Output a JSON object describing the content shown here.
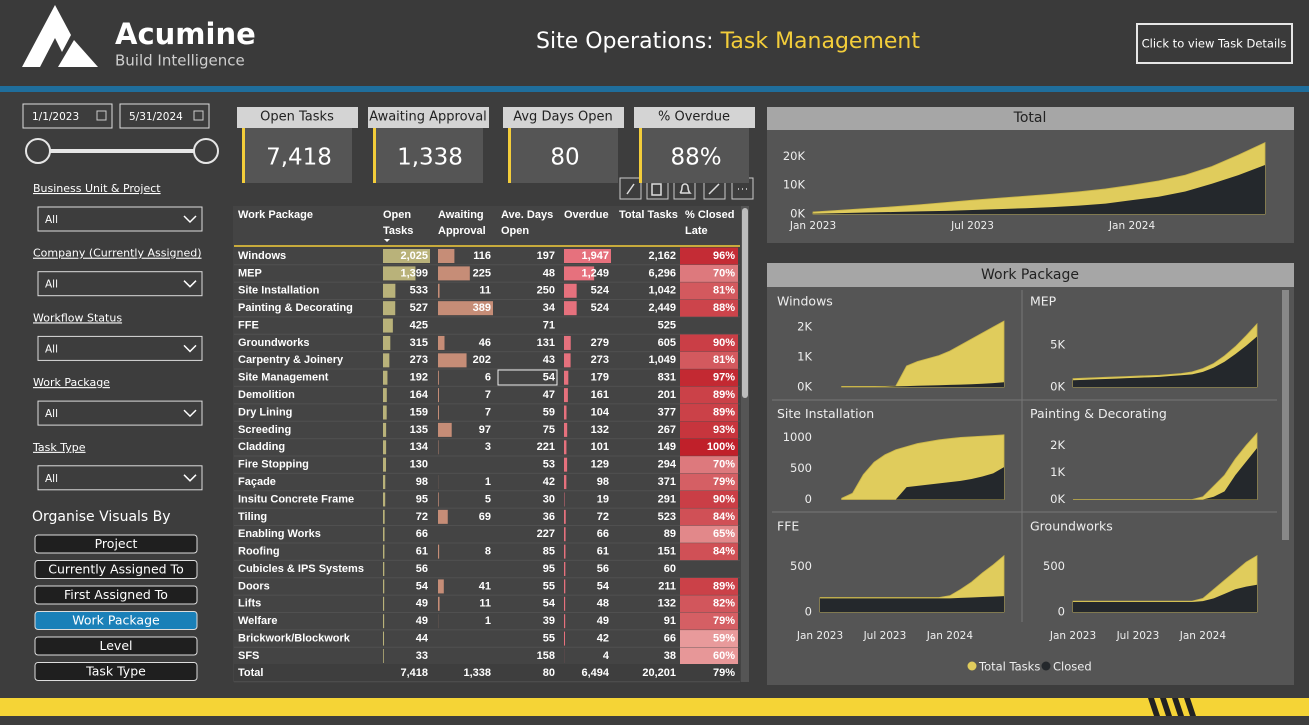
{
  "header": {
    "brand": "Acumine",
    "tagline": "Build Intelligence",
    "title_prefix": "Site Operations:",
    "title_highlight": "Task Management",
    "button": "Click to view Task Details"
  },
  "filters": {
    "date_start": "1/1/2023",
    "date_end": "5/31/2024",
    "slicers": [
      {
        "label": "Business Unit & Project",
        "value": "All"
      },
      {
        "label": "Company (Currently Assigned)",
        "value": "All"
      },
      {
        "label": "Workflow Status",
        "value": "All"
      },
      {
        "label": "Work Package",
        "value": "All"
      },
      {
        "label": "Task Type",
        "value": "All"
      }
    ]
  },
  "organise": {
    "title": "Organise Visuals By",
    "buttons": [
      {
        "label": "Project",
        "active": false
      },
      {
        "label": "Currently Assigned To",
        "active": false
      },
      {
        "label": "First Assigned To",
        "active": false
      },
      {
        "label": "Work Package",
        "active": true
      },
      {
        "label": "Level",
        "active": false
      },
      {
        "label": "Task Type",
        "active": false
      }
    ]
  },
  "kpis": [
    {
      "label": "Open Tasks",
      "value": "7,418"
    },
    {
      "label": "Awaiting Approval",
      "value": "1,338"
    },
    {
      "label": "Avg Days Open",
      "value": "80"
    },
    {
      "label": "% Overdue",
      "value": "88%"
    }
  ],
  "table": {
    "columns": [
      "Work Package",
      "Open Tasks",
      "Awaiting Approval",
      "Ave. Days Open",
      "Overdue",
      "Total Tasks",
      "% Closed Late"
    ],
    "rows": [
      [
        "Windows",
        "2,025",
        "116",
        "197",
        "1,947",
        "2,162",
        "96%"
      ],
      [
        "MEP",
        "1,399",
        "225",
        "48",
        "1,249",
        "6,296",
        "70%"
      ],
      [
        "Site Installation",
        "533",
        "11",
        "250",
        "524",
        "1,042",
        "81%"
      ],
      [
        "Painting & Decorating",
        "527",
        "389",
        "34",
        "524",
        "2,449",
        "88%"
      ],
      [
        "FFE",
        "425",
        null,
        "71",
        null,
        "525",
        null
      ],
      [
        "Groundworks",
        "315",
        "46",
        "131",
        "279",
        "605",
        "90%"
      ],
      [
        "Carpentry & Joinery",
        "273",
        "202",
        "43",
        "273",
        "1,049",
        "81%"
      ],
      [
        "Site Management",
        "192",
        "6",
        "54",
        "179",
        "831",
        "97%"
      ],
      [
        "Demolition",
        "164",
        "7",
        "47",
        "161",
        "201",
        "89%"
      ],
      [
        "Dry Lining",
        "159",
        "7",
        "59",
        "104",
        "377",
        "89%"
      ],
      [
        "Screeding",
        "135",
        "97",
        "75",
        "132",
        "267",
        "93%"
      ],
      [
        "Cladding",
        "134",
        "3",
        "221",
        "101",
        "149",
        "100%"
      ],
      [
        "Fire Stopping",
        "130",
        null,
        "53",
        "129",
        "294",
        "70%"
      ],
      [
        "Façade",
        "98",
        "1",
        "42",
        "98",
        "371",
        "79%"
      ],
      [
        "Insitu Concrete Frame",
        "95",
        "5",
        "30",
        "19",
        "291",
        "90%"
      ],
      [
        "Tiling",
        "72",
        "69",
        "36",
        "72",
        "523",
        "84%"
      ],
      [
        "Enabling Works",
        "66",
        null,
        "227",
        "66",
        "89",
        "65%"
      ],
      [
        "Roofing",
        "61",
        "8",
        "85",
        "61",
        "151",
        "84%"
      ],
      [
        "Cubicles & IPS Systems",
        "56",
        null,
        "95",
        "56",
        "60",
        null
      ],
      [
        "Doors",
        "54",
        "41",
        "55",
        "54",
        "211",
        "89%"
      ],
      [
        "Lifts",
        "49",
        "11",
        "54",
        "48",
        "132",
        "82%"
      ],
      [
        "Welfare",
        "49",
        "1",
        "39",
        "49",
        "91",
        "79%"
      ],
      [
        "Brickwork/Blockwork",
        "44",
        null,
        "55",
        "42",
        "66",
        "59%"
      ],
      [
        "SFS",
        "33",
        null,
        "158",
        "4",
        "38",
        "60%"
      ]
    ],
    "total": [
      "Total",
      "7,418",
      "1,338",
      "80",
      "6,494",
      "20,201",
      "79%"
    ]
  },
  "chart_data": [
    {
      "type": "area",
      "title": "Total",
      "x": [
        "2023-01",
        "2023-02",
        "2023-03",
        "2023-04",
        "2023-05",
        "2023-06",
        "2023-07",
        "2023-08",
        "2023-09",
        "2023-10",
        "2023-11",
        "2023-12",
        "2024-01",
        "2024-02",
        "2024-03",
        "2024-04",
        "2024-05",
        "2024-06"
      ],
      "xlim": [
        "2023-01",
        "2024-06"
      ],
      "xticks": [
        {
          "value": "2023-01",
          "label": "Jan 2023"
        },
        {
          "value": "2023-07",
          "label": "Jul 2023"
        },
        {
          "value": "2024-01",
          "label": "Jan 2024"
        }
      ],
      "ylim": [
        0,
        25000
      ],
      "yticks": [
        {
          "value": 0,
          "label": "0K"
        },
        {
          "value": 10000,
          "label": "10K"
        },
        {
          "value": 20000,
          "label": "20K"
        }
      ],
      "series": [
        {
          "color": "#e0cc5c",
          "values": [
            700,
            1300,
            1900,
            2500,
            3200,
            4000,
            4800,
            5500,
            6200,
            6900,
            7700,
            8700,
            10000,
            11500,
            13500,
            16500,
            20500,
            24800
          ]
        },
        {
          "color": "#24282c",
          "values": [
            100,
            300,
            500,
            700,
            900,
            1100,
            1400,
            1700,
            2000,
            2400,
            2900,
            3600,
            4800,
            6000,
            7800,
            10500,
            13500,
            17000
          ]
        }
      ]
    },
    {
      "type": "area",
      "title": "Work Package",
      "x": [
        "2023-01",
        "2023-02",
        "2023-03",
        "2023-04",
        "2023-05",
        "2023-06",
        "2023-07",
        "2023-08",
        "2023-09",
        "2023-10",
        "2023-11",
        "2023-12",
        "2024-01",
        "2024-02",
        "2024-03",
        "2024-04",
        "2024-05",
        "2024-06"
      ],
      "xlim": [
        "2023-01",
        "2024-06"
      ],
      "xticks": [
        {
          "value": "2023-01",
          "label": "Jan 2023"
        },
        {
          "value": "2023-07",
          "label": "Jul 2023"
        },
        {
          "value": "2024-01",
          "label": "Jan 2024"
        }
      ],
      "series": [
        {
          "name": "Total Tasks",
          "color": "#e0cc5c"
        },
        {
          "name": "Closed",
          "color": "#24282c"
        }
      ],
      "panels": [
        {
          "title": "Windows",
          "ylim": [
            0,
            2300
          ],
          "yticks": [
            {
              "value": 0,
              "label": "0K"
            },
            {
              "value": 1000,
              "label": "1K"
            },
            {
              "value": 2000,
              "label": "2K"
            }
          ],
          "series": [
            {
              "values": [
                null,
                null,
                20,
                20,
                20,
                20,
                20,
                30,
                700,
                850,
                950,
                1050,
                1200,
                1400,
                1600,
                1800,
                2000,
                2200
              ]
            },
            {
              "values": [
                null,
                null,
                0,
                0,
                0,
                0,
                5,
                20,
                30,
                40,
                50,
                60,
                70,
                80,
                90,
                110,
                130,
                160
              ]
            }
          ]
        },
        {
          "title": "MEP",
          "ylim": [
            0,
            8200
          ],
          "yticks": [
            {
              "value": 0,
              "label": "0K"
            },
            {
              "value": 5000,
              "label": "5K"
            }
          ],
          "series": [
            {
              "values": [
                1000,
                1050,
                1100,
                1150,
                1200,
                1250,
                1300,
                1350,
                1400,
                1500,
                1600,
                1800,
                2200,
                2800,
                3700,
                4800,
                6100,
                7500
              ]
            },
            {
              "values": [
                800,
                850,
                900,
                950,
                1000,
                1050,
                1100,
                1150,
                1200,
                1300,
                1400,
                1500,
                1800,
                2300,
                3000,
                3900,
                4900,
                6000
              ]
            }
          ]
        },
        {
          "title": "Site Installation",
          "ylim": [
            0,
            1110
          ],
          "yticks": [
            0,
            500,
            1000
          ],
          "series": [
            {
              "values": [
                null,
                null,
                20,
                100,
                400,
                600,
                720,
                800,
                850,
                900,
                930,
                960,
                980,
                1000,
                1010,
                1020,
                1030,
                1040
              ]
            },
            {
              "values": [
                null,
                null,
                0,
                0,
                0,
                0,
                0,
                0,
                200,
                220,
                240,
                260,
                280,
                300,
                330,
                370,
                420,
                520
              ]
            }
          ]
        },
        {
          "title": "Painting & Decorating",
          "ylim": [
            0,
            2550
          ],
          "yticks": [
            {
              "value": 0,
              "label": "0K"
            },
            {
              "value": 1000,
              "label": "1K"
            },
            {
              "value": 2000,
              "label": "2K"
            }
          ],
          "series": [
            {
              "values": [
                0,
                0,
                0,
                0,
                0,
                0,
                0,
                0,
                0,
                0,
                0,
                0,
                100,
                500,
                900,
                1500,
                2000,
                2450
              ]
            },
            {
              "values": [
                0,
                0,
                0,
                0,
                0,
                0,
                0,
                0,
                0,
                0,
                0,
                0,
                0,
                100,
                300,
                900,
                1400,
                1900
              ]
            }
          ]
        },
        {
          "title": "FFE",
          "ylim": [
            0,
            760
          ],
          "yticks": [
            0,
            500
          ],
          "series": [
            {
              "values": [
                160,
                160,
                160,
                160,
                160,
                160,
                160,
                160,
                160,
                160,
                160,
                160,
                180,
                250,
                330,
                430,
                520,
                620
              ]
            },
            {
              "values": [
                150,
                150,
                150,
                150,
                150,
                150,
                150,
                150,
                150,
                150,
                150,
                150,
                150,
                155,
                160,
                165,
                170,
                175
              ]
            }
          ]
        },
        {
          "title": "Groundworks",
          "ylim": [
            0,
            760
          ],
          "yticks": [
            0,
            500
          ],
          "series": [
            {
              "values": [
                120,
                120,
                120,
                120,
                120,
                120,
                120,
                120,
                120,
                120,
                120,
                120,
                150,
                250,
                350,
                450,
                550,
                620
              ]
            },
            {
              "values": [
                110,
                110,
                110,
                110,
                110,
                110,
                110,
                110,
                110,
                110,
                110,
                110,
                120,
                150,
                200,
                250,
                280,
                300
              ]
            }
          ]
        }
      ]
    }
  ]
}
